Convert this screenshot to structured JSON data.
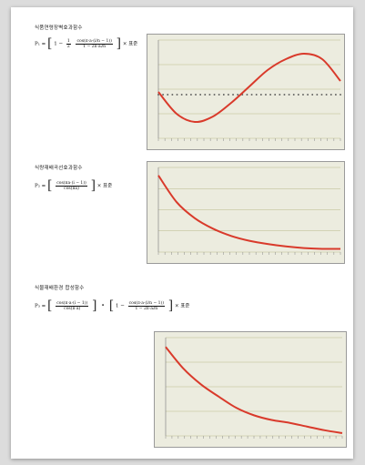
{
  "sections": [
    {
      "title": "식품연령장벽효과함수",
      "formula": {
        "lhs": "P₁ =",
        "brk_open": "[",
        "one": "1 −",
        "frac1_num": "1",
        "frac1_den": "2",
        "frac2_num": "cos(π·a·(i/n − 1))",
        "frac2_den": "1 − 2π·aᵢ/n",
        "brk_close": "]",
        "suffix": "× 표준"
      }
    },
    {
      "title": "식량재배곡선효과함수",
      "formula": {
        "lhs": "P₂ =",
        "brk_open": "[",
        "frac1_num": "cos(πa·(i − 1))",
        "frac1_den": "cos(πa)",
        "brk_close": "]",
        "suffix": "× 표준"
      }
    },
    {
      "title": "식물재배환경 합성함수",
      "formula": {
        "lhs": "P₃ =",
        "brk_open": "[",
        "frac1_num": "cos(π·a·(i − 1))",
        "frac1_den": "cos(π·a)",
        "mid": "] · [",
        "one": "1 −",
        "frac2_num": "cos(π·a·(i/n − 1))",
        "frac2_den": "1 − 2π·aᵢ/n",
        "brk_close": "]",
        "suffix": "× 표준"
      }
    }
  ],
  "chart_data": [
    {
      "type": "line",
      "title": "",
      "series": [
        {
          "x": [
            0,
            4,
            8,
            12,
            16,
            20,
            24,
            28,
            32,
            36,
            40
          ],
          "values": [
            0.1,
            -0.7,
            -1.0,
            -0.8,
            -0.3,
            0.3,
            0.9,
            1.3,
            1.5,
            1.3,
            0.5
          ]
        }
      ],
      "reference_series": [
        {
          "values": [
            0,
            0,
            0,
            0,
            0,
            0,
            0,
            0,
            0,
            0,
            0,
            0,
            0,
            0,
            0,
            0,
            0,
            0,
            0,
            0,
            0,
            0,
            0,
            0,
            0,
            0,
            0,
            0,
            0,
            0,
            0,
            0,
            0,
            0,
            0,
            0,
            0,
            0,
            0,
            0
          ]
        }
      ],
      "ylim": [
        -1.6,
        2.0
      ],
      "xlim": [
        0,
        40
      ],
      "grid": true,
      "color": "#d93a2b"
    },
    {
      "type": "line",
      "title": "",
      "series": [
        {
          "x": [
            0,
            4,
            8,
            12,
            16,
            20,
            24,
            28,
            32,
            36,
            40
          ],
          "values": [
            0.95,
            0.62,
            0.42,
            0.29,
            0.2,
            0.14,
            0.1,
            0.07,
            0.05,
            0.04,
            0.04
          ]
        }
      ],
      "ylim": [
        0,
        1.05
      ],
      "xlim": [
        0,
        40
      ],
      "grid": true,
      "color": "#d93a2b"
    },
    {
      "type": "line",
      "title": "",
      "series": [
        {
          "x": [
            0,
            4,
            8,
            12,
            16,
            20,
            24,
            28,
            32,
            36,
            40
          ],
          "values": [
            0.95,
            0.72,
            0.55,
            0.42,
            0.3,
            0.22,
            0.17,
            0.14,
            0.1,
            0.06,
            0.03
          ]
        }
      ],
      "ylim": [
        0,
        1.05
      ],
      "xlim": [
        0,
        40
      ],
      "grid": true,
      "color": "#d93a2b"
    }
  ]
}
